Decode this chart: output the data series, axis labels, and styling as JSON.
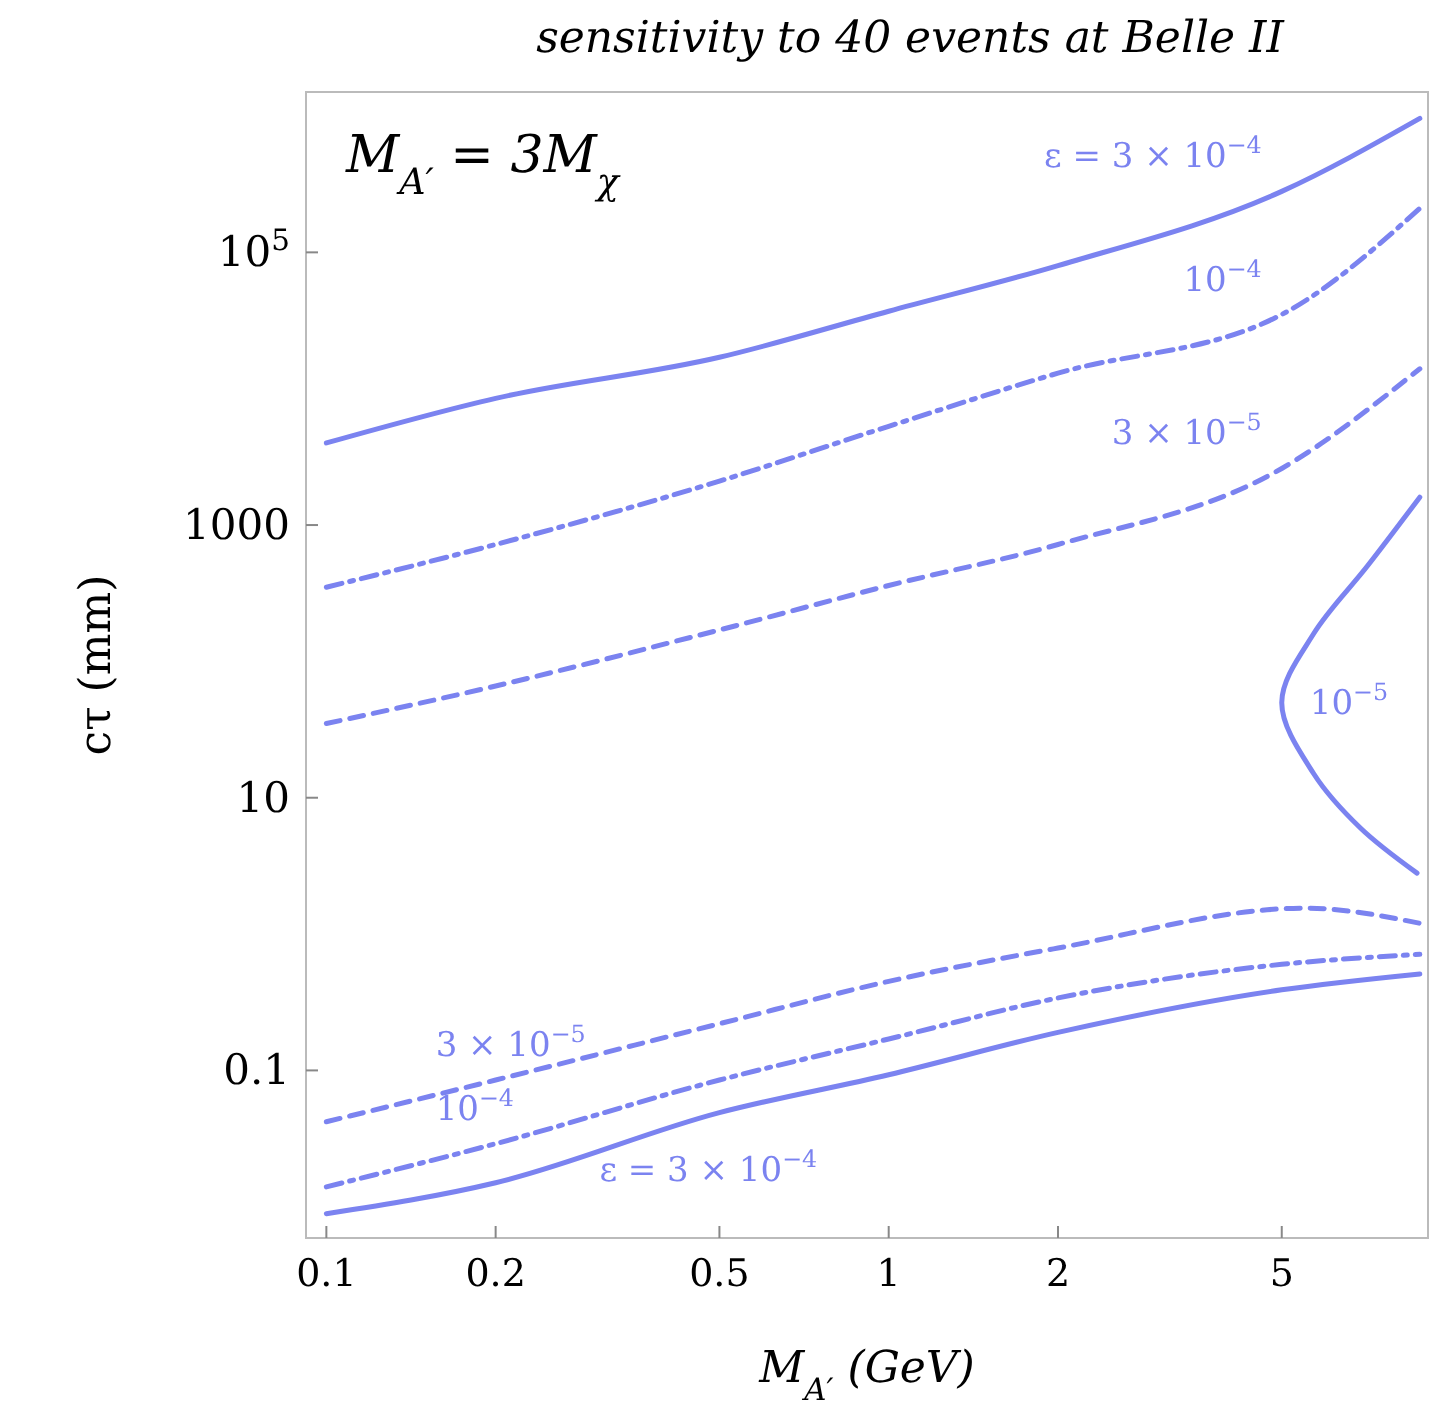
{
  "chart_data": {
    "type": "line",
    "title": "sensitivity to 40 events at Belle II",
    "xlabel": "M$_{A′}$ (GeV)",
    "ylabel": "cτ (mm)",
    "log": "xy",
    "xlim": [
      0.092,
      9.1
    ],
    "ylim": [
      0.0059,
      1500000
    ],
    "xticks": [
      0.1,
      0.2,
      0.5,
      1,
      2,
      5
    ],
    "yticks": [
      0.1,
      10,
      1000,
      {
        "value": 100000,
        "label": "10$^{5}$"
      }
    ],
    "series": [
      {
        "name": "ε = 3 × 10$^{−4}$",
        "color": "#7b83f0",
        "line_style": "solid",
        "x": [
          0.1,
          0.2,
          0.5,
          1,
          2,
          5,
          8.8
        ],
        "values": [
          4000,
          8500,
          17000,
          37000,
          80000,
          280000,
          960000
        ]
      },
      {
        "name": "10$^{−4}$",
        "color": "#7b83f0",
        "line_style": "dashdot",
        "x": [
          0.1,
          0.2,
          0.5,
          1,
          2,
          5,
          8.8
        ],
        "values": [
          350,
          720,
          2100,
          5300,
          13000,
          35000,
          210000
        ]
      },
      {
        "name": "3 × 10$^{−5}$",
        "color": "#7b83f0",
        "line_style": "dashed",
        "x": [
          0.1,
          0.2,
          0.5,
          1,
          2,
          5,
          8.8
        ],
        "values": [
          35,
          66,
          170,
          360,
          720,
          2600,
          14000
        ]
      },
      {
        "name": "10$^{−5}$",
        "color": "#7b83f0",
        "line_style": "solid",
        "x": [
          8.8,
          7.1,
          5.7,
          5.0,
          5.7,
          6.9,
          8.7
        ],
        "values": [
          1600,
          500,
          160,
          50,
          15,
          6,
          2.8
        ]
      },
      {
        "name": "3 × 10$^{−5}$",
        "color": "#7b83f0",
        "line_style": "dashed",
        "x": [
          0.1,
          0.2,
          0.5,
          1,
          2,
          5.5,
          8.8
        ],
        "values": [
          0.042,
          0.085,
          0.22,
          0.45,
          0.79,
          1.55,
          1.2
        ]
      },
      {
        "name": "10$^{−4}$",
        "color": "#7b83f0",
        "line_style": "dashdot",
        "x": [
          0.1,
          0.2,
          0.5,
          1,
          2,
          5,
          8.8
        ],
        "values": [
          0.014,
          0.029,
          0.085,
          0.17,
          0.34,
          0.6,
          0.71
        ]
      },
      {
        "name": "ε = 3 × 10$^{−4}$",
        "color": "#7b83f0",
        "line_style": "solid",
        "x": [
          0.1,
          0.2,
          0.5,
          1,
          2,
          5,
          8.8
        ],
        "values": [
          0.0089,
          0.015,
          0.049,
          0.093,
          0.19,
          0.39,
          0.51
        ]
      }
    ],
    "annotations": [
      "M$_{A′}$ = 3M$_{χ}$"
    ]
  }
}
